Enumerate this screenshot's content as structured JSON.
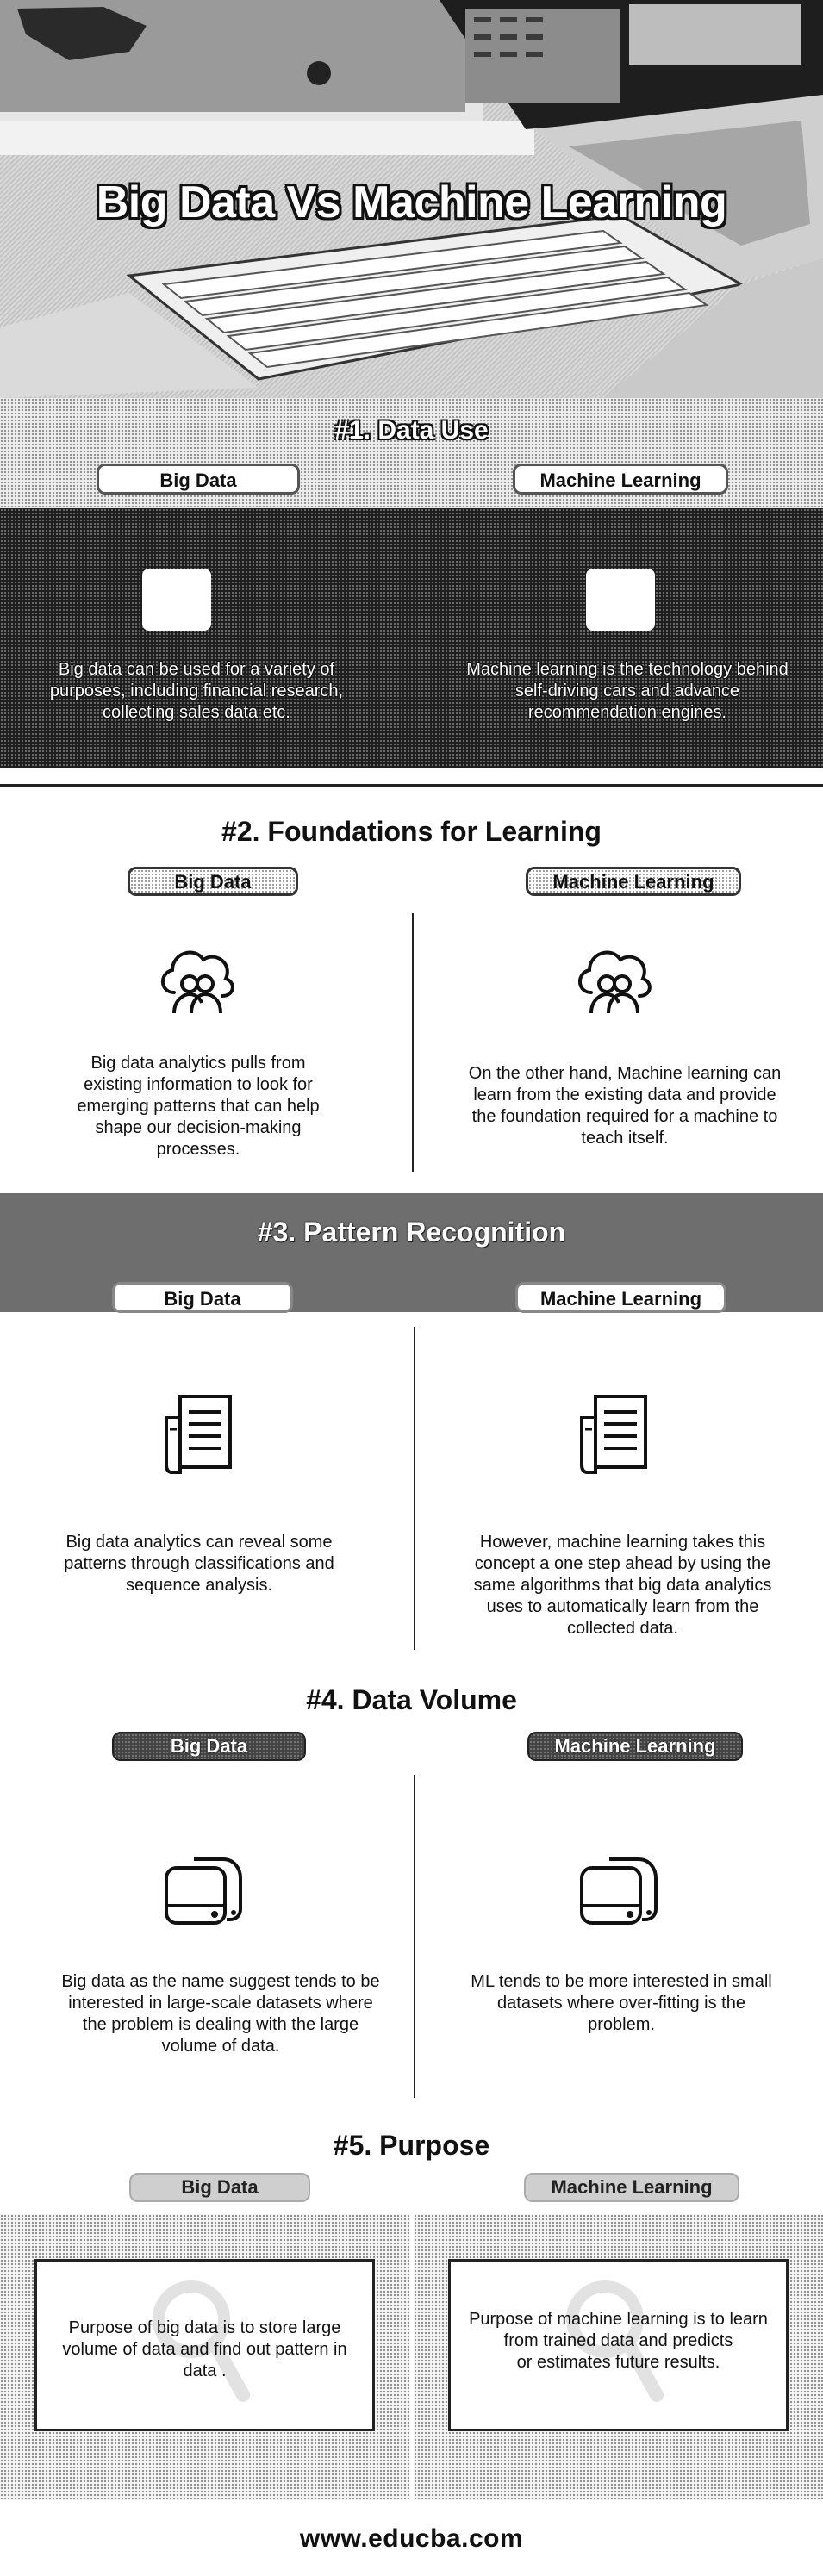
{
  "hero": {
    "title": "Big Data Vs Machine Learning"
  },
  "columns": {
    "left": "Big Data",
    "right": "Machine Learning"
  },
  "sections": [
    {
      "number_title": "#1. Data Use",
      "left_text": "Big data can be used for a variety of purposes, including financial research, collecting sales data etc.",
      "right_text": "Machine learning is the technology behind self-driving cars and advance recommendation engines."
    },
    {
      "number_title": "#2. Foundations for Learning",
      "left_text": "Big data analytics pulls from existing information to look for emerging patterns that can help shape our decision-making processes.",
      "right_text": "On the other hand, Machine learning can learn from the existing data and provide the foundation required for a machine to teach itself."
    },
    {
      "number_title": "#3. Pattern Recognition",
      "left_text": "Big data analytics can reveal some patterns through classifications and sequence analysis.",
      "right_text": "However, machine learning takes this concept a one step ahead by using the same algorithms that big data analytics uses to automatically learn from the collected data."
    },
    {
      "number_title": "#4. Data Volume",
      "left_text": "Big data as the name suggest tends to be interested in large-scale datasets where the problem is dealing with the large volume of data.",
      "right_text": "ML tends to be more interested in small datasets where over-fitting is the problem."
    },
    {
      "number_title": "#5. Purpose",
      "left_text": "Purpose of big data is to store large volume of data and find out pattern in data .",
      "right_text_line1": "Purpose of machine learning is to learn from trained data and predicts",
      "right_text_line2": "or estimates future results."
    }
  ],
  "icons": {
    "s2": "users-cloud-icon",
    "s3": "document-list-icon",
    "s4": "storage-drives-icon"
  },
  "footer": {
    "url": "www.educba.com"
  }
}
